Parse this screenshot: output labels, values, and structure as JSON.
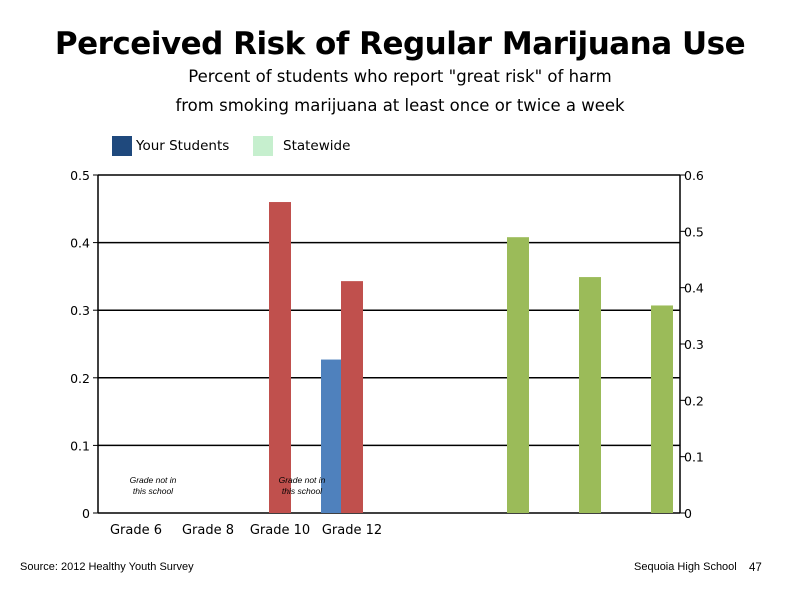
{
  "chart_data": {
    "type": "bar",
    "title": "Perceived Risk of Regular Marijuana Use",
    "subtitle_lines": [
      "Percent of students who report \"great risk\" of harm",
      "from smoking marijuana at least once or twice a week"
    ],
    "legend": [
      {
        "name": "Your Students",
        "color": "#1f497d"
      },
      {
        "name": "Statewide",
        "color": "#c6efce"
      }
    ],
    "legend_placement": "top-left",
    "categories": [
      "Grade 6",
      "Grade 8",
      "Grade 10",
      "Grade 12"
    ],
    "y_left": {
      "ylim": [
        0,
        0.5
      ],
      "ticks": [
        "0",
        "0.1",
        "0.2",
        "0.3",
        "0.4",
        "0.5"
      ]
    },
    "y_right": {
      "ylim": [
        0,
        0.6
      ],
      "ticks": [
        "0",
        "0.1",
        "0.2",
        "0.3",
        "0.4",
        "0.5",
        "0.6"
      ]
    },
    "grid": true,
    "series": [
      {
        "color": "#4f81bd",
        "axis": "left",
        "points": [
          {
            "category": "Grade 12",
            "value": 0.227
          }
        ]
      },
      {
        "color": "#c0504d",
        "axis": "left",
        "points": [
          {
            "category": "Grade 10",
            "value": 0.46
          },
          {
            "category": "Grade 12",
            "value": 0.343
          }
        ]
      },
      {
        "color": "#9bbb59",
        "axis": "left",
        "points": [
          {
            "category": "",
            "value": 0.408
          },
          {
            "category": "",
            "value": 0.349
          },
          {
            "category": "",
            "value": 0.307
          }
        ]
      }
    ],
    "annotations": [
      {
        "category": "Grade 6",
        "lines": [
          "Grade not in",
          "this school"
        ]
      },
      {
        "category": "Grade 10",
        "lines": [
          "Grade not in",
          "this school"
        ]
      }
    ]
  },
  "footer": {
    "source": "Source: 2012 Healthy Youth Survey",
    "school": "Sequoia High School",
    "page_number": "47"
  }
}
